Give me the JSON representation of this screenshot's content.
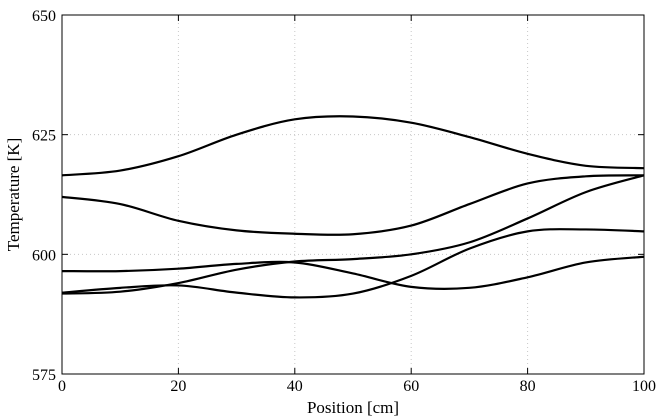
{
  "chart_data": {
    "type": "line",
    "xlabel": "Position [cm]",
    "ylabel": "Temperature [K]",
    "xlim": [
      0,
      100
    ],
    "ylim": [
      575,
      650
    ],
    "xticks": [
      0,
      20,
      40,
      60,
      80,
      100
    ],
    "yticks": [
      575,
      600,
      625,
      650
    ],
    "xtick_labels": [
      "0",
      "20",
      "40",
      "60",
      "80",
      "100"
    ],
    "ytick_labels": [
      "575",
      "600",
      "625",
      "650"
    ],
    "grid": true,
    "legend": false,
    "x": [
      0,
      10,
      20,
      30,
      40,
      50,
      60,
      70,
      80,
      90,
      100
    ],
    "series": [
      {
        "values": [
          616.5,
          617.5,
          620.5,
          625.0,
          628.2,
          628.8,
          627.5,
          624.5,
          621.0,
          618.5,
          618.0
        ]
      },
      {
        "values": [
          612.0,
          610.5,
          607.0,
          605.0,
          604.3,
          604.2,
          606.0,
          610.5,
          614.8,
          616.3,
          616.5
        ]
      },
      {
        "values": [
          596.5,
          596.5,
          597.0,
          598.0,
          598.3,
          596.0,
          593.2,
          593.0,
          595.2,
          598.3,
          599.5
        ]
      },
      {
        "values": [
          592.0,
          593.0,
          593.5,
          592.0,
          591.0,
          591.8,
          595.5,
          601.2,
          604.8,
          605.2,
          604.8
        ]
      },
      {
        "values": [
          591.8,
          592.2,
          594.0,
          596.8,
          598.5,
          599.0,
          600.0,
          602.5,
          607.5,
          613.0,
          616.5
        ]
      }
    ]
  }
}
